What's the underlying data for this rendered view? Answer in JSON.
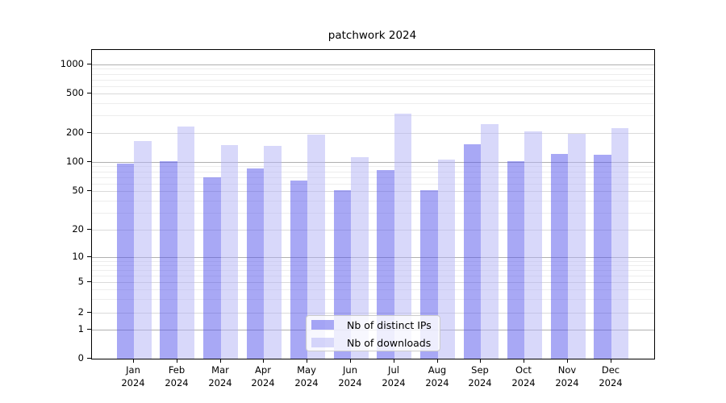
{
  "header": {
    "title": "patchwork 2024"
  },
  "legend": {
    "items": [
      {
        "label": "Nb of distinct IPs",
        "color": "#a8a8f5",
        "fill": "rgba(81,81,235,0.5)"
      },
      {
        "label": "Nb of downloads",
        "color": "#d8d8fa",
        "fill": "rgba(177,177,245,0.5)"
      }
    ]
  },
  "axes": {
    "ytick_labels": [
      "0",
      "1",
      "2",
      "5",
      "10",
      "20",
      "50",
      "100",
      "200",
      "500",
      "1000"
    ],
    "xtick_year": "2024",
    "months": [
      "Jan",
      "Feb",
      "Mar",
      "Apr",
      "May",
      "Jun",
      "Jul",
      "Aug",
      "Sep",
      "Oct",
      "Nov",
      "Dec"
    ]
  },
  "chart_data": {
    "type": "bar",
    "title": "patchwork 2024",
    "categories": [
      "Jan 2024",
      "Feb 2024",
      "Mar 2024",
      "Apr 2024",
      "May 2024",
      "Jun 2024",
      "Jul 2024",
      "Aug 2024",
      "Sep 2024",
      "Oct 2024",
      "Nov 2024",
      "Dec 2024"
    ],
    "series": [
      {
        "name": "Nb of distinct IPs",
        "color": "#a8a8f5",
        "values": [
          96,
          101,
          70,
          85,
          64,
          51,
          83,
          51,
          153,
          102,
          121,
          118
        ]
      },
      {
        "name": "Nb of downloads",
        "color": "#d8d8fa",
        "values": [
          166,
          234,
          151,
          146,
          194,
          113,
          312,
          106,
          245,
          207,
          197,
          222
        ]
      }
    ],
    "xlabel": "",
    "ylabel": "",
    "yscale": "symlog",
    "yticks": [
      0,
      1,
      2,
      5,
      10,
      20,
      50,
      100,
      200,
      500,
      1000
    ],
    "ylim": [
      0,
      1400
    ],
    "grid": true,
    "grid_major_color": "#b0b0b0",
    "grid_mid_color": "#dadada",
    "grid_minor_color": "#ededed",
    "legend_position": "lower center"
  }
}
